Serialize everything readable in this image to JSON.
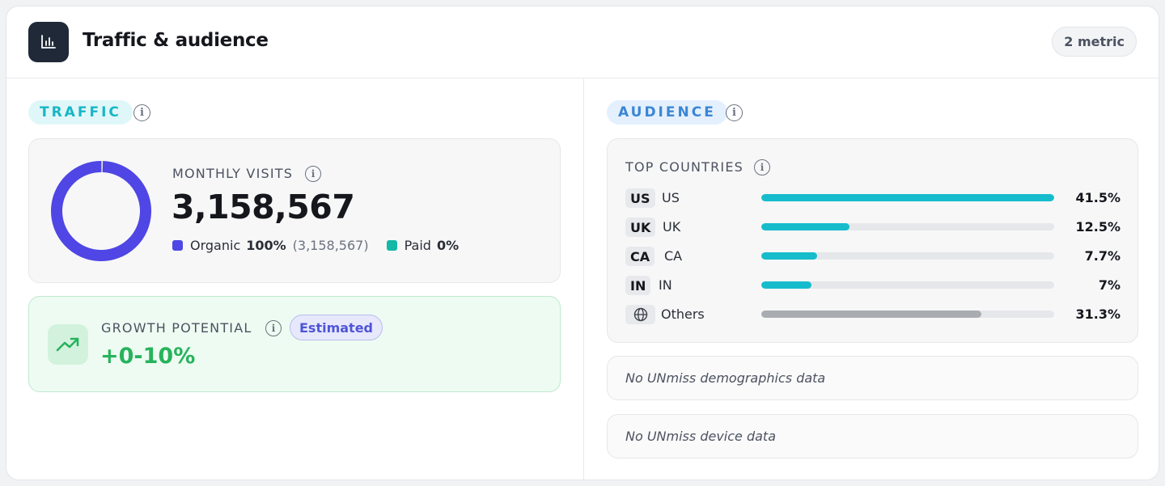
{
  "header": {
    "title": "Traffic & audience",
    "metric_badge": "2 metric",
    "icon": "bar-chart-icon"
  },
  "traffic": {
    "tag": "TRAFFIC",
    "monthly_visits": {
      "label": "MONTHLY VISITS",
      "value": "3,158,567",
      "organic_fraction": 1.0,
      "legend": {
        "organic_label": "Organic",
        "organic_pct": "100%",
        "organic_count": "(3,158,567)",
        "paid_label": "Paid",
        "paid_pct": "0%"
      },
      "colors": {
        "organic": "#4f46e5",
        "paid": "#14b8a6"
      }
    },
    "growth": {
      "label": "GROWTH POTENTIAL",
      "badge": "Estimated",
      "value": "+0-10%",
      "icon": "trending-up-icon"
    }
  },
  "audience": {
    "tag": "AUDIENCE",
    "top_countries": {
      "label": "TOP COUNTRIES",
      "rows": [
        {
          "code": "US",
          "name": "US",
          "pct": "41.5%",
          "fill": 1.0
        },
        {
          "code": "UK",
          "name": "UK",
          "pct": "12.5%",
          "fill": 0.3
        },
        {
          "code": "CA",
          "name": "CA",
          "pct": "7.7%",
          "fill": 0.19
        },
        {
          "code": "IN",
          "name": "IN",
          "pct": "7%",
          "fill": 0.17
        },
        {
          "code": "",
          "name": "Others",
          "pct": "31.3%",
          "fill": 0.75,
          "icon": "globe-icon"
        }
      ]
    },
    "demographics_empty": "No UNmiss demographics data",
    "device_empty": "No UNmiss device data"
  }
}
